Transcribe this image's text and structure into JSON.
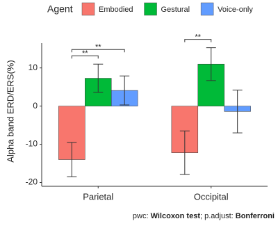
{
  "chart_data": {
    "type": "bar",
    "y_label": "Alpha band ERD/ERS(%)",
    "legend_title": "Agent",
    "legend_position": "top",
    "categories": [
      "Parietal",
      "Occipital"
    ],
    "series": [
      {
        "name": "Embodied",
        "color": "#F8766D",
        "values": [
          -14,
          -12.2
        ],
        "errors": [
          4.5,
          5.7
        ]
      },
      {
        "name": "Gestural",
        "color": "#00BA38",
        "values": [
          7.3,
          11
        ],
        "errors": [
          3.7,
          4.3
        ]
      },
      {
        "name": "Voice-only",
        "color": "#619CFF",
        "values": [
          4.1,
          -1.4
        ],
        "errors": [
          3.8,
          5.6
        ]
      }
    ],
    "ylim": [
      -21,
      16.5
    ],
    "yticks": [
      -20,
      -10,
      0,
      10
    ],
    "grid": false,
    "annotations": [
      {
        "text": "**",
        "category": "Parietal",
        "from": "Embodied",
        "to": "Gestural"
      },
      {
        "text": "**",
        "category": "Parietal",
        "from": "Embodied",
        "to": "Voice-only"
      },
      {
        "text": "**",
        "category": "Occipital",
        "from": "Embodied",
        "to": "Gestural"
      }
    ],
    "caption": [
      "pwc: ",
      "Wilcoxon test",
      "; p.adjust: ",
      "Bonferroni"
    ]
  }
}
